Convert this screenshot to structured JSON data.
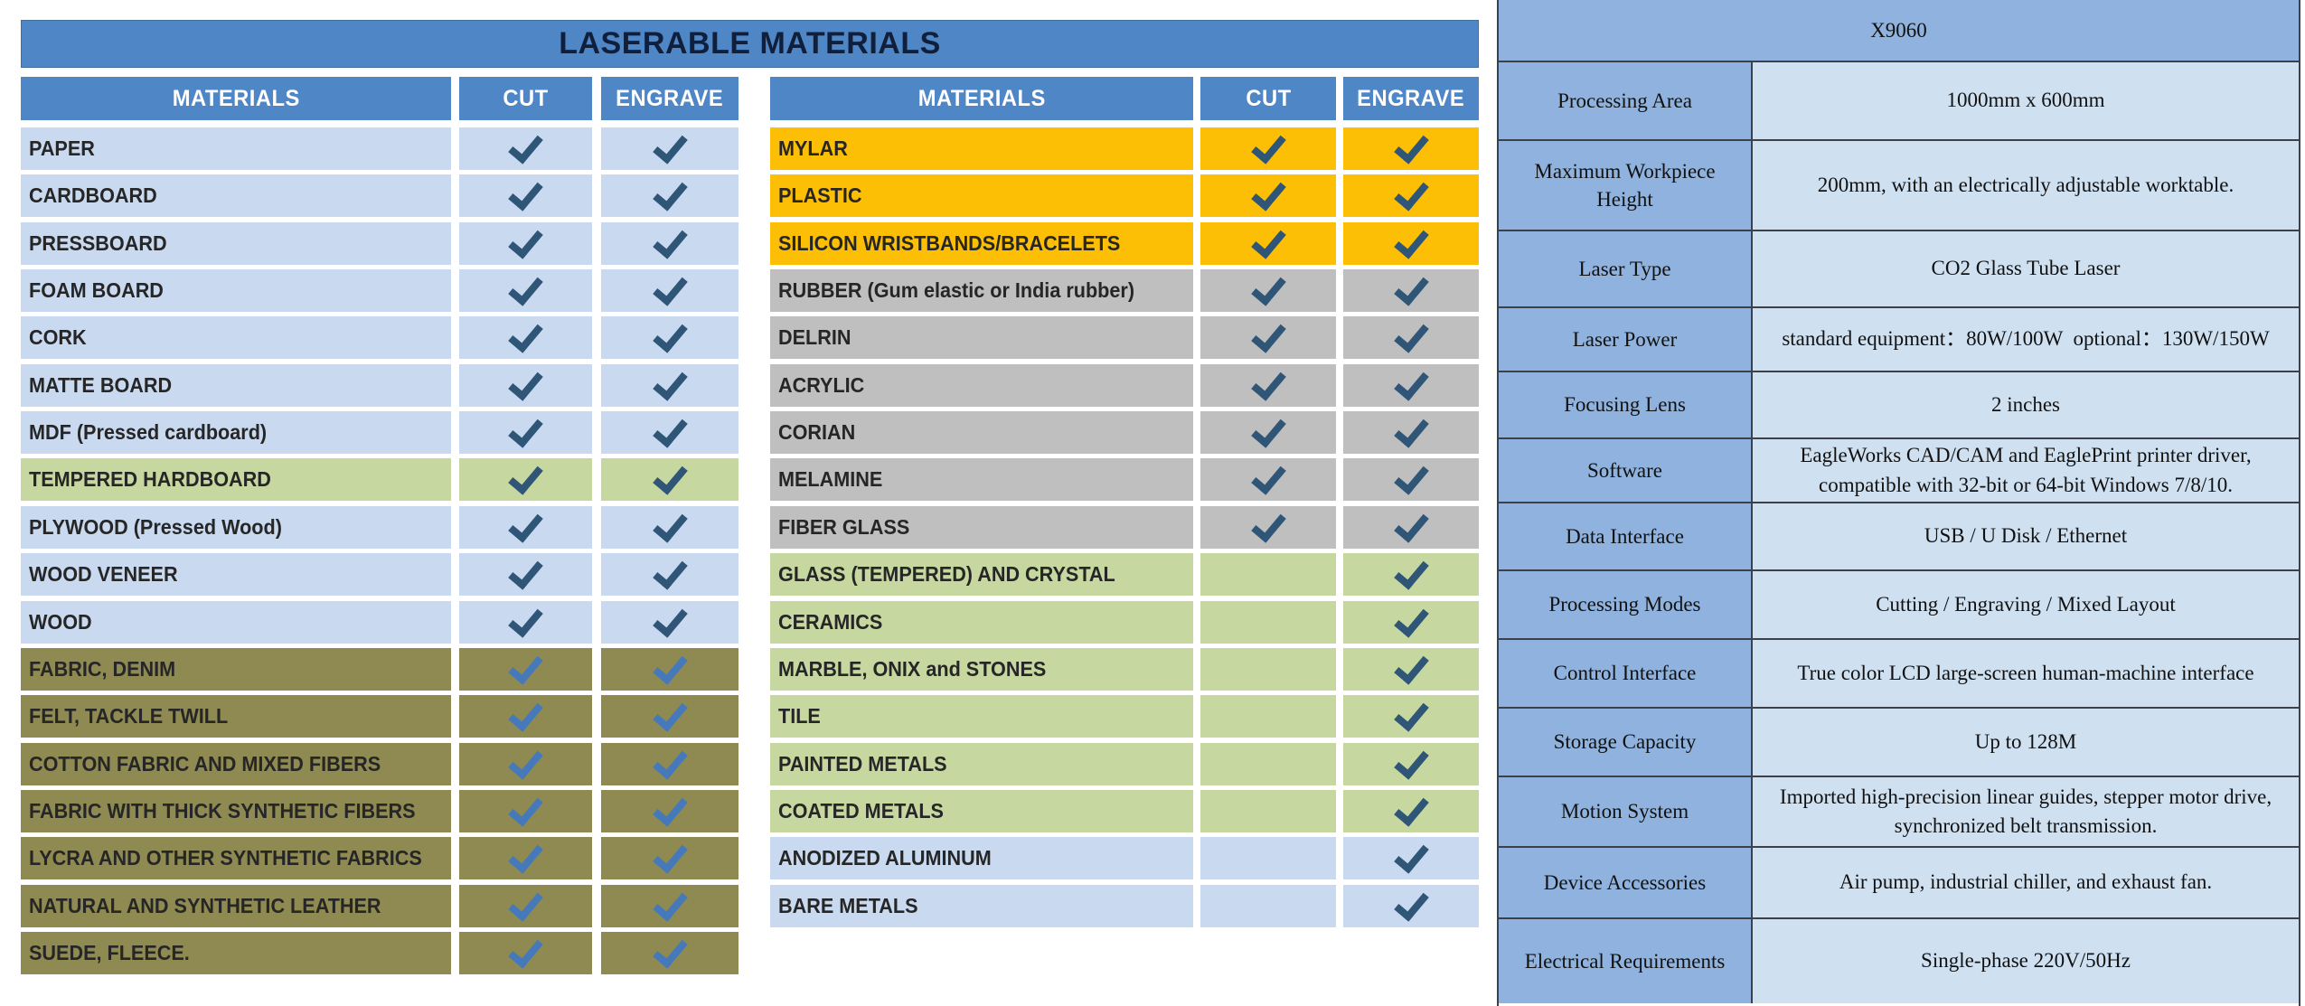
{
  "palette": {
    "header_blue": "#4f86c6",
    "title_text": "#10203c",
    "header_text": "#ffffff",
    "row_blue": "#c9daf0",
    "row_green": "#c6d89f",
    "row_khaki": "#8f8a52",
    "row_orange": "#fcbf05",
    "row_gray": "#bfbfbf",
    "check_dark": "#2f5577",
    "check_bright": "#4679b9",
    "spec_label_bg": "#8fb3de",
    "spec_value_bg": "#cfe0f1",
    "spec_border": "#3c4048"
  },
  "materials_section": {
    "title": "LASERABLE MATERIALS",
    "columns": [
      "MATERIALS",
      "CUT",
      "ENGRAVE"
    ],
    "tables": [
      {
        "rows": [
          {
            "name": "PAPER",
            "color": "blue",
            "cut": true,
            "engrave": true
          },
          {
            "name": "CARDBOARD",
            "color": "blue",
            "cut": true,
            "engrave": true
          },
          {
            "name": "PRESSBOARD",
            "color": "blue",
            "cut": true,
            "engrave": true
          },
          {
            "name": "FOAM BOARD",
            "color": "blue",
            "cut": true,
            "engrave": true
          },
          {
            "name": "CORK",
            "color": "blue",
            "cut": true,
            "engrave": true
          },
          {
            "name": "MATTE BOARD",
            "color": "blue",
            "cut": true,
            "engrave": true
          },
          {
            "name": "MDF (Pressed cardboard)",
            "color": "blue",
            "cut": true,
            "engrave": true
          },
          {
            "name": "TEMPERED HARDBOARD",
            "color": "green",
            "cut": true,
            "engrave": true
          },
          {
            "name": "PLYWOOD (Pressed Wood)",
            "color": "blue",
            "cut": true,
            "engrave": true
          },
          {
            "name": "WOOD VENEER",
            "color": "blue",
            "cut": true,
            "engrave": true
          },
          {
            "name": "WOOD",
            "color": "blue",
            "cut": true,
            "engrave": true
          },
          {
            "name": "FABRIC, DENIM",
            "color": "khaki",
            "cut": true,
            "engrave": true
          },
          {
            "name": "FELT, TACKLE TWILL",
            "color": "khaki",
            "cut": true,
            "engrave": true
          },
          {
            "name": "COTTON FABRIC AND MIXED FIBERS",
            "color": "khaki",
            "cut": true,
            "engrave": true
          },
          {
            "name": "FABRIC WITH THICK SYNTHETIC FIBERS",
            "color": "khaki",
            "cut": true,
            "engrave": true
          },
          {
            "name": "LYCRA AND OTHER SYNTHETIC FABRICS",
            "color": "khaki",
            "cut": true,
            "engrave": true
          },
          {
            "name": "NATURAL AND SYNTHETIC LEATHER",
            "color": "khaki",
            "cut": true,
            "engrave": true
          },
          {
            "name": "SUEDE, FLEECE.",
            "color": "khaki",
            "cut": true,
            "engrave": true
          }
        ]
      },
      {
        "rows": [
          {
            "name": "MYLAR",
            "color": "orange",
            "cut": true,
            "engrave": true
          },
          {
            "name": "PLASTIC",
            "color": "orange",
            "cut": true,
            "engrave": true
          },
          {
            "name": "SILICON WRISTBANDS/BRACELETS",
            "color": "orange",
            "cut": true,
            "engrave": true
          },
          {
            "name": "RUBBER (Gum elastic or India rubber)",
            "color": "gray",
            "cut": true,
            "engrave": true
          },
          {
            "name": "DELRIN",
            "color": "gray",
            "cut": true,
            "engrave": true
          },
          {
            "name": "ACRYLIC",
            "color": "gray",
            "cut": true,
            "engrave": true
          },
          {
            "name": "CORIAN",
            "color": "gray",
            "cut": true,
            "engrave": true
          },
          {
            "name": "MELAMINE",
            "color": "gray",
            "cut": true,
            "engrave": true
          },
          {
            "name": "FIBER GLASS",
            "color": "gray",
            "cut": true,
            "engrave": true
          },
          {
            "name": "GLASS (TEMPERED) AND CRYSTAL",
            "color": "green",
            "cut": false,
            "engrave": true
          },
          {
            "name": "CERAMICS",
            "color": "green",
            "cut": false,
            "engrave": true
          },
          {
            "name": "MARBLE, ONIX and STONES",
            "color": "green",
            "cut": false,
            "engrave": true
          },
          {
            "name": "TILE",
            "color": "green",
            "cut": false,
            "engrave": true
          },
          {
            "name": "PAINTED METALS",
            "color": "green",
            "cut": false,
            "engrave": true
          },
          {
            "name": "COATED METALS",
            "color": "green",
            "cut": false,
            "engrave": true
          },
          {
            "name": "ANODIZED ALUMINUM",
            "color": "blue",
            "cut": false,
            "engrave": true
          },
          {
            "name": "BARE METALS",
            "color": "blue",
            "cut": false,
            "engrave": true
          }
        ]
      }
    ]
  },
  "spec_table": {
    "model": "X9060",
    "rows": [
      {
        "label": "Processing Area",
        "value": "1000mm x 600mm"
      },
      {
        "label": "Maximum Workpiece Height",
        "value": "200mm, with an electrically adjustable worktable."
      },
      {
        "label": "Laser Type",
        "value": "CO2 Glass Tube Laser"
      },
      {
        "label": "Laser Power",
        "value": "standard equipment：80W/100W  optional：130W/150W"
      },
      {
        "label": "Focusing Lens",
        "value": "2 inches"
      },
      {
        "label": "Software",
        "value": "EagleWorks CAD/CAM and EaglePrint printer driver, compatible with 32-bit or 64-bit Windows 7/8/10."
      },
      {
        "label": "Data Interface",
        "value": "USB / U Disk / Ethernet"
      },
      {
        "label": "Processing Modes",
        "value": "Cutting / Engraving / Mixed Layout"
      },
      {
        "label": "Control Interface",
        "value": "True color LCD large-screen human-machine interface"
      },
      {
        "label": "Storage Capacity",
        "value": "Up to 128M"
      },
      {
        "label": "Motion System",
        "value": "Imported high-precision linear guides, stepper motor drive, synchronized belt transmission."
      },
      {
        "label": "Device Accessories",
        "value": "Air pump, industrial chiller, and exhaust fan."
      },
      {
        "label": "Electrical Requirements",
        "value": "Single-phase 220V/50Hz"
      }
    ]
  }
}
